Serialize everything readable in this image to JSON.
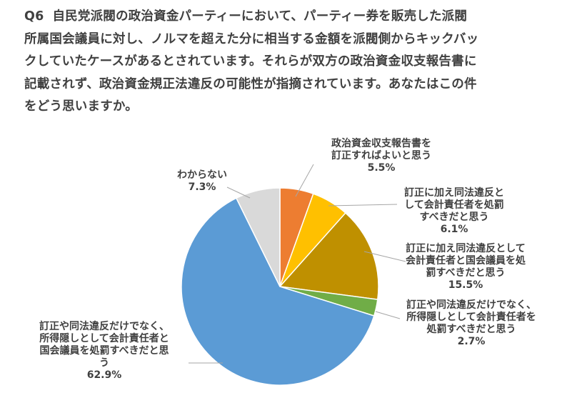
{
  "question": {
    "number": "Q6",
    "lines": [
      "自民党派閥の政治資金パーティーにおいて、パーティー券を販売した派閥",
      "所属国会議員に対し、ノルマを超えた分に相当する金額を派閥側からキックバッ",
      "クしていたケースがあるとされています。それらが双方の政治資金収支報告書に",
      "記載されず、政治資金規正法違反の可能性が指摘されています。あなたはこの件",
      "をどう思いますか。"
    ]
  },
  "chart_data": {
    "type": "pie",
    "start": "12 o'clock",
    "direction": "clockwise",
    "categories": [
      "政治資金収支報告書を訂正すればよいと思う",
      "訂正に加え同法違反として会計責任者を処罰すべきだと思う",
      "訂正に加え同法違反として会計責任者と国会議員を処罰すべきだと思う",
      "訂正や同法違反だけでなく、所得隠しとして会計責任者を処罰すべきだと思う",
      "訂正や同法違反だけでなく、所得隠しとして会計責任者と国会議員を処罰すべきだと思う",
      "わからない"
    ],
    "values": [
      5.5,
      6.1,
      15.5,
      2.7,
      62.9,
      7.3
    ],
    "value_labels": [
      "5.5%",
      "6.1%",
      "15.5%",
      "2.7%",
      "62.9%",
      "7.3%"
    ],
    "label_lines": [
      [
        "政治資金収支報告書を",
        "訂正すればよいと思う"
      ],
      [
        "訂正に加え同法違反と",
        "して会計責任者を処罰",
        "すべきだと思う"
      ],
      [
        "訂正に加え同法違反として",
        "会計責任者と国会議員を処",
        "罰すべきだと思う"
      ],
      [
        "訂正や同法違反だけでなく、",
        "所得隠しとして会計責任者を",
        "処罰すべきだと思う"
      ],
      [
        "訂正や同法違反だけでなく、",
        "所得隠しとして会計責任者と",
        "国会議員を処罰すべきだと思",
        "う"
      ],
      [
        "わからない"
      ]
    ],
    "colors": [
      "#ED7D31",
      "#FFC000",
      "#BF9000",
      "#70AD47",
      "#5B9BD5",
      "#D9D9D9"
    ],
    "leader_lines": true,
    "legend": "none"
  }
}
